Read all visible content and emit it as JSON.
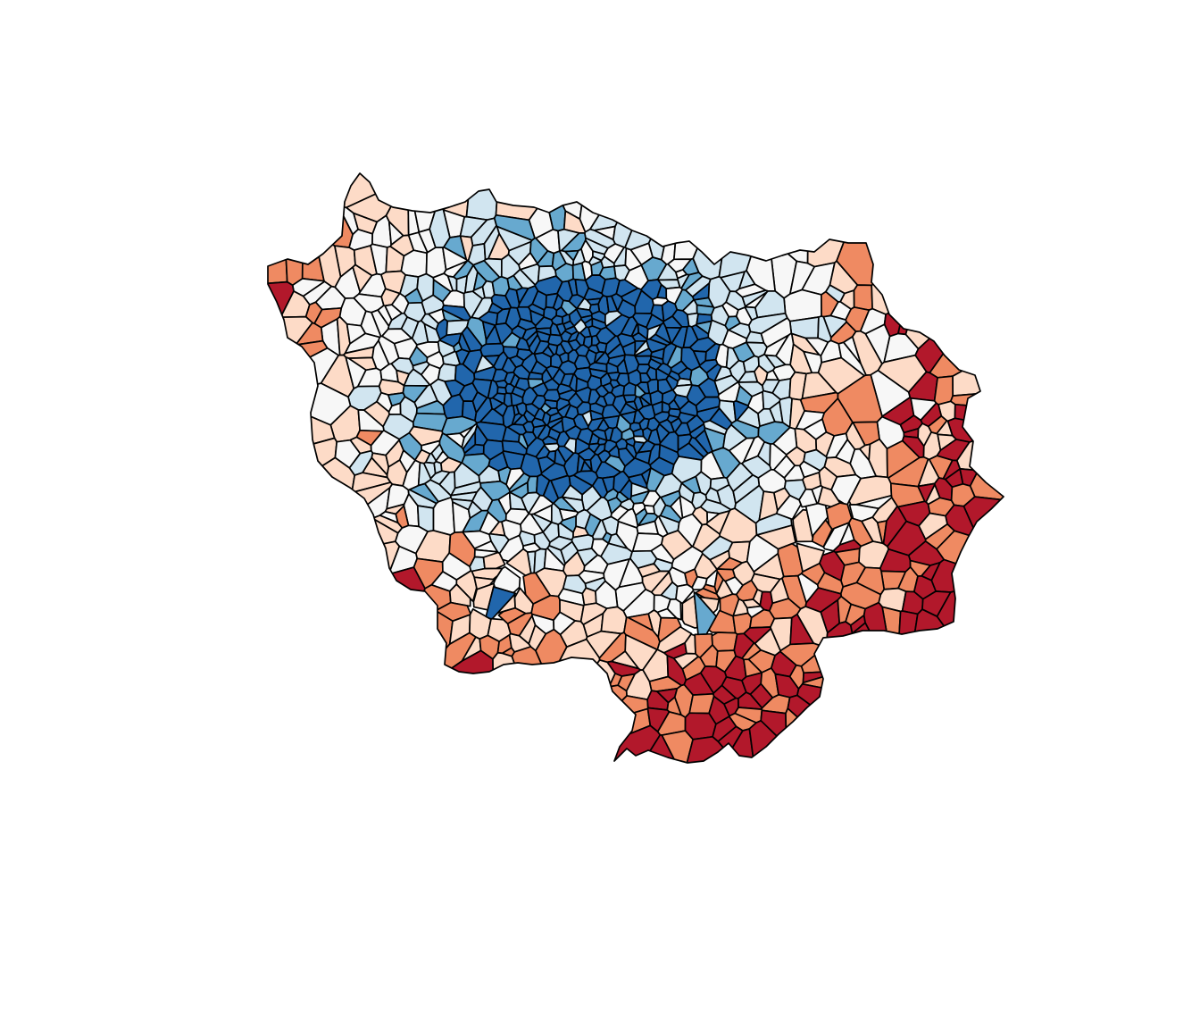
{
  "map": {
    "palette": [
      "#b2182b",
      "#ef8a62",
      "#fddbc7",
      "#f7f7f7",
      "#d1e5f0",
      "#67a9cf",
      "#2166ac"
    ],
    "palette_order": "low-to-high",
    "border_color": "#000000",
    "background": "#ffffff"
  }
}
